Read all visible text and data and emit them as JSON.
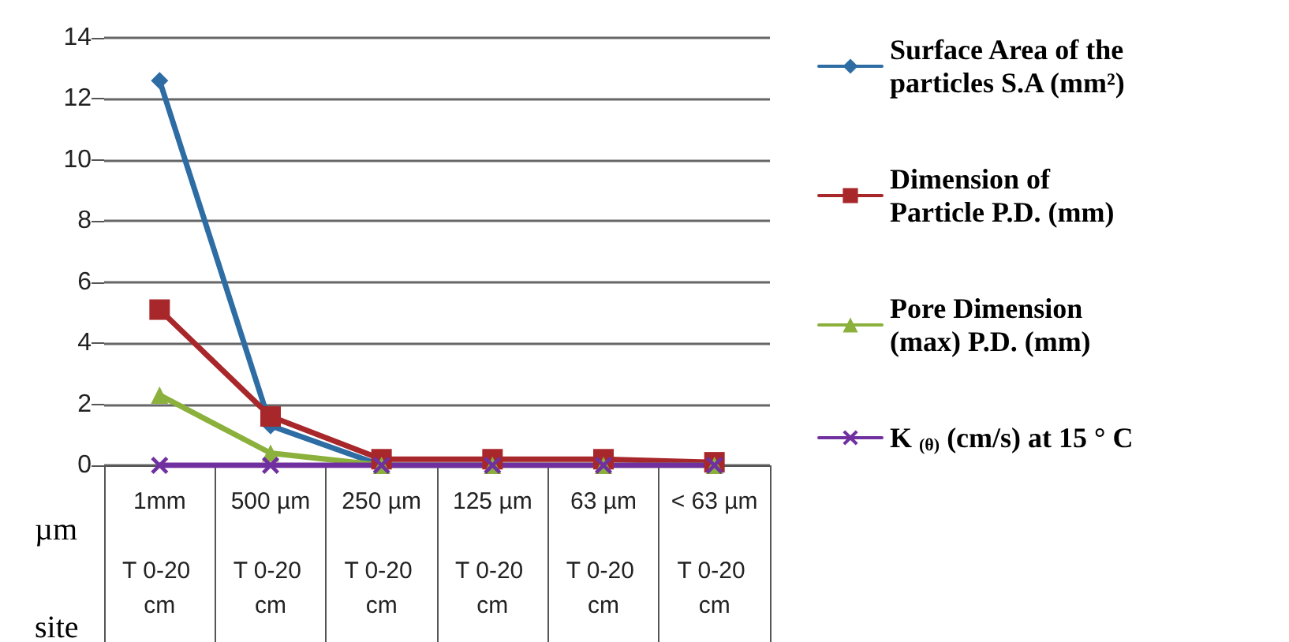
{
  "chart_data": {
    "type": "line",
    "categories": [
      "1mm\nT 0-20 cm",
      "500 µm\nT 0-20 cm",
      "250 µm\nT 0-20 cm",
      "125 µm\nT 0-20 cm",
      "63 µm\nT 0-20 cm",
      "< 63 µm\nT 0-20 cm"
    ],
    "series": [
      {
        "name": "Surface Area of the particles S.A (mm²)",
        "color": "#2e6da4",
        "marker": "diamond",
        "values": [
          12.6,
          1.3,
          0,
          0,
          null,
          null
        ]
      },
      {
        "name": "Dimension of Particle P.D. (mm)",
        "color": "#a8272a",
        "marker": "square",
        "values": [
          5.1,
          1.6,
          0.2,
          0.2,
          0.2,
          0.1
        ]
      },
      {
        "name": "Pore Dimension (max) P.D. (mm)",
        "color": "#8bb13c",
        "marker": "triangle",
        "values": [
          2.3,
          0.4,
          0,
          0,
          0,
          0
        ]
      },
      {
        "name": "K $_{(θ)}$ (cm/s) at 15 ° C",
        "color": "#7030a0",
        "marker": "cross",
        "values": [
          0,
          0,
          0,
          0,
          0,
          0
        ]
      }
    ],
    "ylim": [
      0,
      14
    ],
    "yticks": [
      0,
      2,
      4,
      6,
      8,
      10,
      12,
      14
    ],
    "grid": "y",
    "legend": "right",
    "annotations": [
      "µm",
      "site"
    ]
  }
}
